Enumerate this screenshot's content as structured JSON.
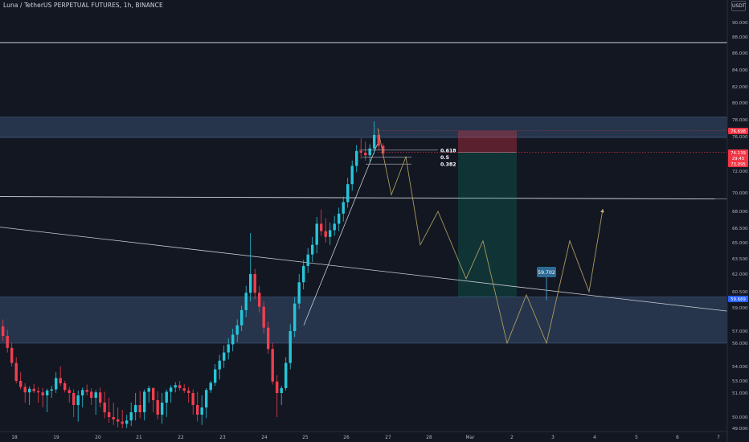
{
  "title": "Luna / TetherUS PERPETUAL FUTURES, 1h, BINANCE",
  "unit": "USDT",
  "chart_data": {
    "type": "candlestick",
    "y_axis": {
      "range": [
        49.0,
        91.5
      ],
      "tick_labels": [
        "90.000",
        "88.000",
        "86.000",
        "84.000",
        "82.000",
        "80.000",
        "78.000",
        "76.000",
        "74.000",
        "72.000",
        "70.000",
        "68.000",
        "66.500",
        "65.000",
        "63.500",
        "62.000",
        "60.500",
        "59.000",
        "57.000",
        "56.000",
        "54.000",
        "53.000",
        "51.000",
        "50.000",
        "49.000"
      ],
      "tick_values": [
        90.0,
        88.0,
        86.0,
        84.0,
        82.0,
        80.0,
        78.0,
        76.0,
        74.0,
        72.0,
        70.0,
        68.0,
        66.5,
        65.0,
        63.5,
        62.0,
        60.5,
        59.0,
        57.0,
        56.0,
        54.0,
        53.0,
        51.0,
        50.0,
        49.0
      ],
      "price_badges": [
        {
          "label": "76.698",
          "value": 76.698,
          "color": "#f23645"
        },
        {
          "label": "74.139",
          "value": 74.139,
          "color": "#f23645"
        },
        {
          "label": "29:45",
          "value": 73.62,
          "color": "#f23645"
        },
        {
          "label": "73.095",
          "value": 73.095,
          "color": "#f23645"
        },
        {
          "label": "59.669",
          "value": 59.669,
          "color": "#2962ff"
        }
      ]
    },
    "x_axis": {
      "range": [
        0,
        932
      ],
      "tick_labels": [
        "18",
        "19",
        "20",
        "21",
        "22",
        "23",
        "24",
        "25",
        "26",
        "27",
        "28",
        "Mar",
        "2",
        "3",
        "4",
        "5",
        "6",
        "7"
      ]
    },
    "ohlc": [
      [
        57.4,
        58.0,
        56.2,
        56.6
      ],
      [
        56.6,
        57.1,
        55.2,
        55.6
      ],
      [
        55.6,
        56.0,
        54.0,
        54.3
      ],
      [
        54.3,
        54.8,
        52.6,
        53.0
      ],
      [
        53.0,
        53.6,
        51.6,
        52.0
      ],
      [
        52.0,
        52.6,
        50.6,
        51.1
      ],
      [
        51.1,
        52.1,
        50.5,
        51.7
      ],
      [
        51.7,
        52.5,
        51.0,
        51.3
      ],
      [
        51.3,
        52.0,
        50.6,
        51.1
      ],
      [
        51.1,
        51.8,
        50.4,
        50.9
      ],
      [
        50.9,
        51.7,
        50.2,
        51.4
      ],
      [
        51.4,
        52.2,
        50.8,
        51.6
      ],
      [
        51.6,
        53.6,
        51.0,
        53.2
      ],
      [
        53.2,
        54.0,
        52.2,
        52.6
      ],
      [
        52.6,
        53.0,
        51.1,
        51.5
      ],
      [
        51.5,
        52.0,
        50.6,
        51.0
      ],
      [
        51.0,
        51.6,
        50.0,
        50.5
      ],
      [
        50.5,
        51.4,
        49.6,
        50.9
      ],
      [
        50.9,
        51.9,
        50.4,
        51.5
      ],
      [
        51.5,
        52.4,
        50.9,
        51.2
      ],
      [
        51.2,
        51.8,
        50.5,
        50.8
      ],
      [
        50.8,
        51.5,
        50.1,
        51.1
      ],
      [
        51.1,
        51.9,
        50.4,
        50.6
      ],
      [
        50.6,
        51.2,
        49.9,
        50.2
      ],
      [
        50.2,
        50.8,
        49.5,
        50.0
      ],
      [
        50.0,
        50.6,
        49.3,
        49.8
      ],
      [
        49.8,
        50.4,
        49.1,
        49.6
      ],
      [
        49.6,
        50.3,
        49.0,
        49.4
      ],
      [
        49.4,
        50.1,
        49.0,
        49.7
      ],
      [
        49.7,
        50.6,
        49.2,
        50.2
      ],
      [
        50.2,
        51.0,
        49.7,
        50.5
      ],
      [
        50.5,
        51.3,
        49.9,
        50.2
      ],
      [
        50.2,
        51.6,
        49.7,
        51.2
      ],
      [
        51.2,
        52.2,
        50.6,
        51.8
      ],
      [
        51.8,
        52.0,
        50.2,
        50.7
      ],
      [
        50.7,
        51.3,
        49.8,
        50.1
      ],
      [
        50.1,
        51.0,
        49.4,
        50.6
      ],
      [
        50.6,
        51.6,
        50.0,
        51.2
      ],
      [
        51.2,
        52.3,
        50.6,
        51.9
      ],
      [
        51.9,
        52.8,
        51.1,
        52.3
      ],
      [
        52.3,
        53.0,
        51.4,
        51.8
      ],
      [
        51.8,
        52.5,
        51.0,
        51.4
      ],
      [
        51.4,
        52.0,
        50.6,
        51.0
      ],
      [
        51.0,
        51.6,
        50.1,
        50.5
      ],
      [
        50.5,
        51.2,
        49.6,
        50.1
      ],
      [
        50.1,
        50.9,
        49.3,
        50.4
      ],
      [
        50.4,
        51.8,
        49.9,
        51.5
      ],
      [
        51.5,
        53.0,
        51.0,
        52.7
      ],
      [
        52.7,
        54.2,
        52.2,
        53.8
      ],
      [
        53.8,
        55.0,
        53.1,
        54.5
      ],
      [
        54.5,
        55.8,
        53.9,
        55.2
      ],
      [
        55.2,
        56.4,
        54.6,
        55.9
      ],
      [
        55.9,
        57.2,
        55.3,
        56.7
      ],
      [
        56.7,
        58.0,
        56.1,
        57.5
      ],
      [
        57.5,
        59.2,
        57.0,
        58.8
      ],
      [
        58.8,
        61.0,
        58.2,
        60.4
      ],
      [
        60.4,
        66.0,
        59.6,
        62.0
      ],
      [
        62.0,
        62.5,
        59.8,
        60.4
      ],
      [
        60.4,
        61.0,
        58.6,
        59.1
      ],
      [
        59.1,
        59.6,
        56.8,
        57.3
      ],
      [
        57.3,
        57.8,
        55.1,
        55.5
      ],
      [
        55.5,
        56.0,
        52.4,
        52.9
      ],
      [
        52.9,
        53.4,
        50.0,
        51.0
      ],
      [
        51.0,
        52.2,
        50.5,
        51.8
      ],
      [
        51.8,
        54.8,
        51.4,
        54.3
      ],
      [
        54.3,
        57.6,
        53.8,
        57.0
      ],
      [
        57.0,
        60.0,
        56.5,
        59.4
      ],
      [
        59.4,
        62.0,
        58.9,
        61.3
      ],
      [
        61.3,
        63.4,
        60.7,
        62.8
      ],
      [
        62.8,
        64.5,
        62.1,
        63.9
      ],
      [
        63.9,
        65.6,
        63.2,
        64.8
      ],
      [
        64.8,
        67.5,
        64.0,
        66.9
      ],
      [
        66.9,
        68.2,
        65.7,
        66.2
      ],
      [
        66.2,
        67.4,
        65.0,
        65.6
      ],
      [
        65.6,
        67.0,
        64.8,
        66.3
      ],
      [
        66.3,
        67.6,
        65.7,
        66.9
      ],
      [
        66.9,
        68.4,
        66.2,
        67.8
      ],
      [
        67.8,
        69.6,
        67.1,
        69.0
      ],
      [
        69.0,
        71.4,
        68.4,
        70.8
      ],
      [
        70.8,
        73.2,
        70.2,
        72.6
      ],
      [
        72.6,
        75.0,
        71.9,
        74.3
      ],
      [
        74.3,
        75.8,
        73.4,
        74.1
      ],
      [
        74.1,
        75.4,
        73.2,
        73.8
      ],
      [
        73.8,
        75.1,
        73.0,
        74.6
      ],
      [
        74.6,
        77.8,
        74.0,
        76.2
      ],
      [
        76.2,
        76.8,
        74.4,
        74.9
      ],
      [
        74.9,
        75.2,
        73.6,
        74.0
      ]
    ],
    "zones": [
      {
        "name": "supply-zone",
        "y": [
          75.9,
          78.3
        ],
        "color": "#3d5a80"
      },
      {
        "name": "demand-zone",
        "y": [
          56.0,
          60.0
        ],
        "color": "#3d5a80"
      }
    ],
    "horizontal_lines": [
      87.3,
      69.6
    ],
    "trendlines": [
      {
        "from": [
          0,
          66.6
        ],
        "to": [
          932,
          58.5
        ]
      },
      {
        "from": [
          378,
          57.5
        ],
        "to": [
          470,
          75.2
        ]
      }
    ],
    "fibonacci": [
      {
        "label": "0.618",
        "value": 74.4
      },
      {
        "label": "0.5",
        "value": 73.6
      },
      {
        "label": "0.382",
        "value": 72.8
      }
    ],
    "position": {
      "entry": 74.139,
      "stop": 76.698,
      "target": 60.0,
      "x_range": [
        570,
        643
      ]
    },
    "projection_path": [
      [
        470,
        77.0
      ],
      [
        487,
        69.8
      ],
      [
        505,
        73.6
      ],
      [
        523,
        64.8
      ],
      [
        545,
        68.0
      ],
      [
        580,
        61.6
      ],
      [
        601,
        65.2
      ],
      [
        631,
        56.0
      ],
      [
        655,
        60.2
      ],
      [
        680,
        56.0
      ],
      [
        709,
        65.2
      ],
      [
        733,
        60.5
      ],
      [
        750,
        68.2
      ]
    ],
    "callout": {
      "label": "59.702",
      "value": 59.702
    }
  }
}
